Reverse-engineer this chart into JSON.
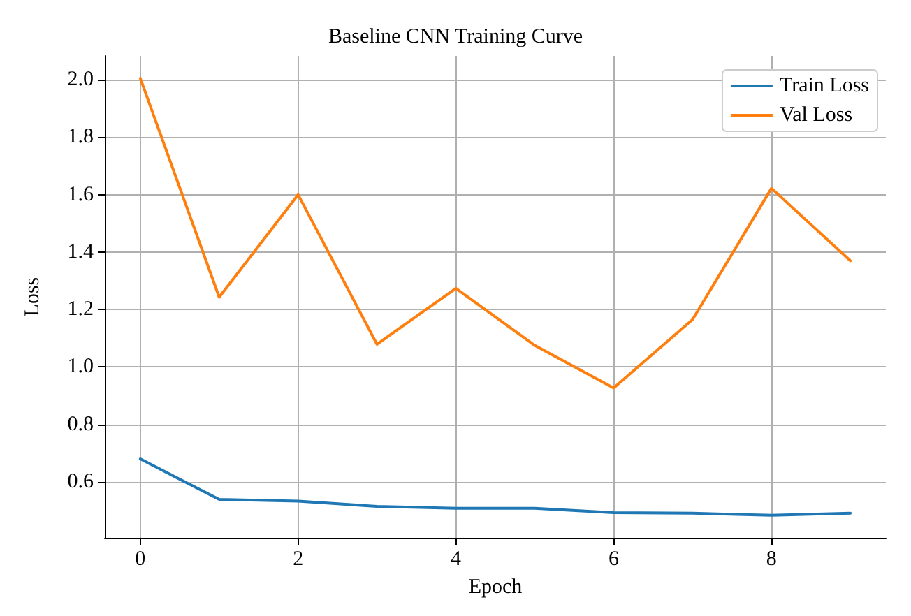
{
  "chart_data": {
    "type": "line",
    "title": "Baseline CNN Training Curve",
    "xlabel": "Epoch",
    "ylabel": "Loss",
    "x": [
      0,
      1,
      2,
      3,
      4,
      5,
      6,
      7,
      8,
      9
    ],
    "series": [
      {
        "name": "Train Loss",
        "color": "#1f77b4",
        "values": [
          0.68,
          0.539,
          0.533,
          0.515,
          0.508,
          0.508,
          0.493,
          0.491,
          0.484,
          0.491
        ]
      },
      {
        "name": "Val Loss",
        "color": "#ff7f0e",
        "values": [
          2.005,
          1.243,
          1.6,
          1.079,
          1.274,
          1.075,
          0.927,
          1.165,
          1.622,
          1.37
        ]
      }
    ],
    "xlim": [
      -0.45,
      9.45
    ],
    "xticks": [
      0,
      2,
      4,
      6,
      8
    ],
    "ylim": [
      0.405,
      2.083
    ],
    "yticks": [
      {
        "value": 0.6,
        "label": "0.6"
      },
      {
        "value": 0.8,
        "label": "0.8"
      },
      {
        "value": 1.0,
        "label": "1.0"
      },
      {
        "value": 1.2,
        "label": "1.2"
      },
      {
        "value": 1.4,
        "label": "1.4"
      },
      {
        "value": 1.6,
        "label": "1.6"
      },
      {
        "value": 1.8,
        "label": "1.8"
      },
      {
        "value": 2.0,
        "label": "2.0"
      }
    ],
    "grid": true,
    "legend": "top right",
    "marker": "none",
    "line_style": "solid"
  }
}
